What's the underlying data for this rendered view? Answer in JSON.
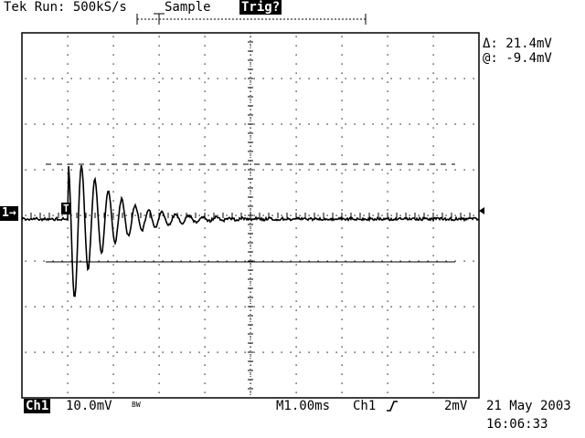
{
  "header": {
    "run_status": "Tek Run: 500kS/s",
    "acq_mode": "Sample",
    "trig_status": "Trig?"
  },
  "cursor_readout": {
    "delta": "Δ: 21.4mV",
    "at": "@: -9.4mV"
  },
  "channel_marker": "1→",
  "trigger_marker": "T",
  "footer": {
    "channel_label": "Ch1",
    "volts_div": "10.0mV",
    "bw_label": "BW",
    "timebase": "M1.00ms",
    "trig_source": "Ch1",
    "trig_slope_icon": "rising-edge-icon",
    "trig_level": "2mV",
    "date": "21 May 2003",
    "time": "16:06:33"
  },
  "display": {
    "h_divisions": 10,
    "v_divisions": 8,
    "volts_per_div": 10.0,
    "ms_per_div": 1.0,
    "cursor_delta_mV": 21.4,
    "cursor_at_mV": -9.4,
    "ground_offset_div": 0,
    "trigger_time_div": 1.0,
    "signal_colors": {
      "trace": "#000000",
      "background": "#ffffff",
      "inverse_text": "#ffffff"
    }
  }
}
